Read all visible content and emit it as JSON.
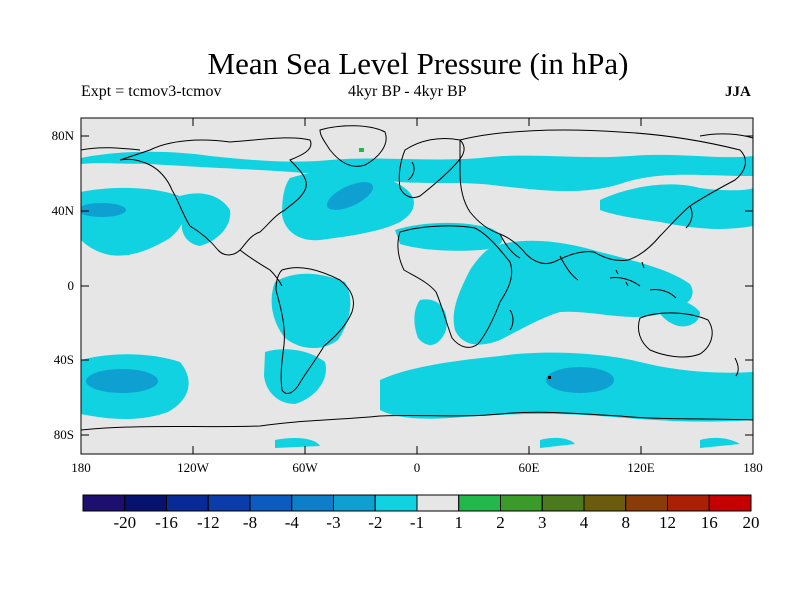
{
  "title": "Mean Sea Level Pressure (in hPa)",
  "experiment": "Expt = tcmov3-tcmov",
  "period": "4kyr BP - 4kyr BP",
  "season": "JJA",
  "map": {
    "projection": "equirectangular",
    "lon_range": [
      -180,
      180
    ],
    "lat_range": [
      -90,
      90
    ],
    "lat_labels": [
      "80N",
      "40N",
      "0",
      "40S",
      "80S"
    ],
    "lon_labels": [
      "180",
      "120W",
      "60W",
      "0",
      "60E",
      "120E",
      "180"
    ]
  },
  "colorbar": {
    "labels": [
      "-20",
      "-16",
      "-12",
      "-8",
      "-4",
      "-3",
      "-2",
      "-1",
      "1",
      "2",
      "3",
      "4",
      "8",
      "12",
      "16",
      "20"
    ],
    "colors": [
      "#1c0f6e",
      "#06126e",
      "#082a96",
      "#0a3caa",
      "#0c5cc0",
      "#0f7ec8",
      "#0fa0d2",
      "#10d2e0",
      "#e6e6e6",
      "#22b84a",
      "#3a9a2a",
      "#4a7a1c",
      "#6a5c0c",
      "#8a3c08",
      "#aa2004",
      "#c40000"
    ]
  },
  "colors": {
    "background": "#e6e6e6",
    "anomaly_m1_m2": "#10d2e0",
    "anomaly_m2_m3": "#0fa0d2",
    "anomaly_p1_p2": "#22b84a",
    "coastline": "#000000"
  },
  "regions": [
    {
      "name": "N Pacific subtropical band",
      "range": "-2 to -1",
      "lon": [
        -180,
        -120
      ],
      "lat": [
        10,
        40
      ]
    },
    {
      "name": "NE Pacific",
      "range": "-3 to -2",
      "lon": [
        -175,
        -150
      ],
      "lat": [
        36,
        42
      ]
    },
    {
      "name": "N Atlantic",
      "range": "-3 to -2",
      "lon": [
        -55,
        -25
      ],
      "lat": [
        35,
        55
      ]
    },
    {
      "name": "Arctic band",
      "range": "-2 to -1",
      "lon": [
        -180,
        180
      ],
      "lat": [
        55,
        80
      ]
    },
    {
      "name": "Greenland spot",
      "range": "1 to 2",
      "lon": [
        -40,
        -35
      ],
      "lat": [
        70,
        73
      ]
    },
    {
      "name": "S Pacific",
      "range": "-3 to -2",
      "lon": [
        -170,
        -140
      ],
      "lat": [
        -55,
        -45
      ]
    },
    {
      "name": "S Indian Ocean",
      "range": "-3 to -2",
      "lon": [
        75,
        100
      ],
      "lat": [
        -60,
        -50
      ]
    },
    {
      "name": "Southern Ocean band",
      "range": "-2 to -1",
      "lon": [
        -180,
        180
      ],
      "lat": [
        -70,
        -40
      ]
    },
    {
      "name": "Indian Ocean",
      "range": "-2 to -1",
      "lon": [
        45,
        120
      ],
      "lat": [
        -20,
        20
      ]
    }
  ]
}
